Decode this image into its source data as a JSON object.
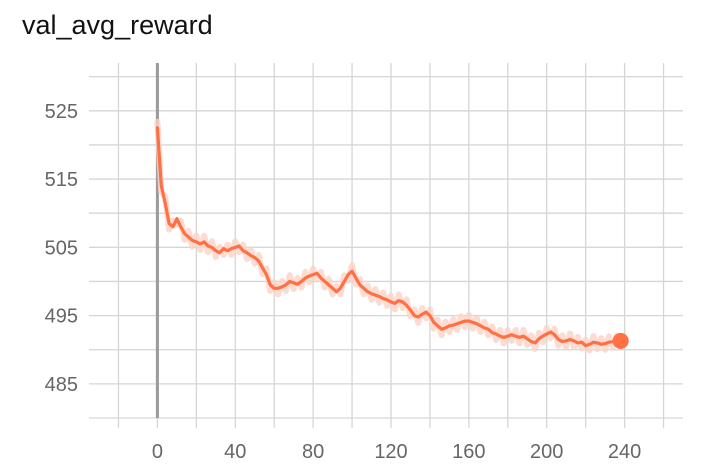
{
  "chart_data": {
    "type": "line",
    "title": "val_avg_reward",
    "xlabel": "",
    "ylabel": "",
    "xlim": [
      -30,
      270
    ],
    "ylim": [
      480,
      532
    ],
    "x_ticks": [
      0,
      40,
      80,
      120,
      160,
      200,
      240
    ],
    "y_ticks": [
      485,
      495,
      505,
      515,
      525
    ],
    "grid": true,
    "legend": "none",
    "series": [
      {
        "name": "",
        "color": "#ff7043",
        "smoothed_color": "#ff7043",
        "raw_color": "#fbd3c7",
        "end_marker": true,
        "x": [
          0,
          2,
          4,
          6,
          8,
          10,
          12,
          14,
          16,
          18,
          20,
          22,
          24,
          26,
          28,
          30,
          32,
          34,
          36,
          38,
          40,
          42,
          44,
          46,
          48,
          50,
          52,
          54,
          56,
          58,
          60,
          62,
          64,
          66,
          68,
          70,
          72,
          74,
          76,
          78,
          80,
          82,
          84,
          86,
          88,
          90,
          92,
          94,
          96,
          98,
          100,
          102,
          104,
          106,
          108,
          110,
          112,
          114,
          116,
          118,
          120,
          122,
          124,
          126,
          128,
          130,
          132,
          134,
          136,
          138,
          140,
          142,
          144,
          146,
          148,
          150,
          152,
          154,
          156,
          158,
          160,
          162,
          164,
          166,
          168,
          170,
          172,
          174,
          176,
          178,
          180,
          182,
          184,
          186,
          188,
          190,
          192,
          194,
          196,
          198,
          200,
          202,
          204,
          206,
          208,
          210,
          212,
          214,
          216,
          218,
          220,
          222,
          224,
          226,
          228,
          230,
          232,
          234,
          236,
          238
        ],
        "values": [
          522.5,
          514,
          511.5,
          508.5,
          508,
          509.2,
          508,
          507,
          506.5,
          506,
          505.8,
          505.5,
          505.8,
          505.2,
          505,
          504.5,
          504.2,
          504.8,
          504.5,
          504.8,
          505,
          505.2,
          504.5,
          504.2,
          503.8,
          503.5,
          503,
          502,
          501,
          499.5,
          499,
          499,
          499.2,
          499.5,
          500,
          499.8,
          499.6,
          500,
          500.5,
          500.8,
          501,
          501.2,
          500.5,
          500,
          499.5,
          499,
          498.5,
          499,
          500,
          501,
          501.5,
          500.5,
          499.5,
          499,
          498.5,
          498.2,
          498,
          497.8,
          497.5,
          497.3,
          497,
          496.8,
          497.2,
          497,
          496.5,
          495.8,
          495,
          494.8,
          495.2,
          495.5,
          495,
          494,
          493.5,
          493,
          493.2,
          493.5,
          493.6,
          493.8,
          494,
          494.2,
          494.2,
          494,
          493.8,
          493.5,
          493.2,
          493,
          492.5,
          492.3,
          492,
          491.8,
          492,
          492.2,
          492,
          491.8,
          492,
          491.6,
          491.2,
          491,
          491.6,
          492,
          492.3,
          492.6,
          492.2,
          491.5,
          491.2,
          491.3,
          491.5,
          491.3,
          491,
          491.1,
          490.6,
          490.8,
          491.1,
          491,
          490.8,
          490.9,
          491.1,
          491.2,
          491.2,
          491.3
        ]
      }
    ]
  }
}
